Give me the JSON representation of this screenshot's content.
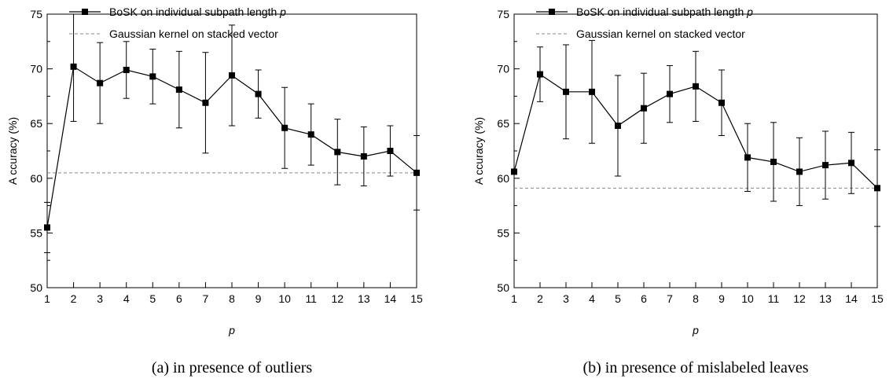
{
  "chart_data": [
    {
      "type": "line",
      "caption": "(a) in presence of outliers",
      "xlabel": "p",
      "ylabel": "A ccuracy (%)",
      "xlim": [
        1,
        15
      ],
      "ylim": [
        50,
        75
      ],
      "xticks": [
        1,
        2,
        3,
        4,
        5,
        6,
        7,
        8,
        9,
        10,
        11,
        12,
        13,
        14,
        15
      ],
      "yticks": [
        50,
        55,
        60,
        65,
        70,
        75
      ],
      "legend_position": "top-left",
      "grid": false,
      "series": [
        {
          "name": "BoSK on individual subpath length p",
          "style": "solid-square-markers",
          "x": [
            1,
            2,
            3,
            4,
            5,
            6,
            7,
            8,
            9,
            10,
            11,
            12,
            13,
            14,
            15
          ],
          "y": [
            55.5,
            70.2,
            68.7,
            69.9,
            69.3,
            68.1,
            66.9,
            69.4,
            67.7,
            64.6,
            64.0,
            62.4,
            62.0,
            62.5,
            60.5
          ],
          "err": [
            2.3,
            5.0,
            3.7,
            2.6,
            2.5,
            3.5,
            4.6,
            4.6,
            2.2,
            3.7,
            2.8,
            3.0,
            2.7,
            2.3,
            3.4
          ]
        },
        {
          "name": "Gaussian kernel on stacked vector",
          "style": "dashed",
          "y_constant": 60.5
        }
      ]
    },
    {
      "type": "line",
      "caption": "(b) in presence of mislabeled leaves",
      "xlabel": "p",
      "ylabel": "A ccuracy (%)",
      "xlim": [
        1,
        15
      ],
      "ylim": [
        50,
        75
      ],
      "xticks": [
        1,
        2,
        3,
        4,
        5,
        6,
        7,
        8,
        9,
        10,
        11,
        12,
        13,
        14,
        15
      ],
      "yticks": [
        50,
        55,
        60,
        65,
        70,
        75
      ],
      "legend_position": "top-left",
      "grid": false,
      "series": [
        {
          "name": "BoSK on individual subpath length p",
          "style": "solid-square-markers",
          "x": [
            1,
            2,
            3,
            4,
            5,
            6,
            7,
            8,
            9,
            10,
            11,
            12,
            13,
            14,
            15
          ],
          "y": [
            60.6,
            69.5,
            67.9,
            67.9,
            64.8,
            66.4,
            67.7,
            68.4,
            66.9,
            61.9,
            61.5,
            60.6,
            61.2,
            61.4,
            59.1
          ],
          "err": [
            0,
            2.5,
            4.3,
            4.7,
            4.6,
            3.2,
            2.6,
            3.2,
            3.0,
            3.1,
            3.6,
            3.1,
            3.1,
            2.8,
            3.5
          ]
        },
        {
          "name": "Gaussian kernel on stacked vector",
          "style": "dashed",
          "y_constant": 59.1
        }
      ]
    }
  ]
}
